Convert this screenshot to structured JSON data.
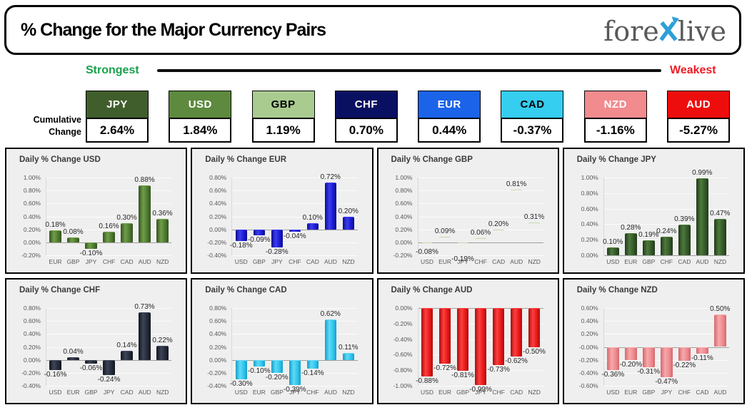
{
  "header": {
    "title": "% Change for the Major Currency Pairs",
    "logo": {
      "part1": "fore",
      "part2": "live",
      "x_color": "#2d9fd8",
      "text_color": "#58595b"
    }
  },
  "scale": {
    "strongest_label": "Strongest",
    "weakest_label": "Weakest",
    "strongest_color": "#17a24c",
    "weakest_color": "#ee1c25"
  },
  "cumulative": {
    "row_label_line1": "Cumulative",
    "row_label_line2": "Change",
    "items": [
      {
        "currency": "JPY",
        "value": "2.64%",
        "bg": "#405e2c",
        "fg": "#ffffff"
      },
      {
        "currency": "USD",
        "value": "1.84%",
        "bg": "#5d8a3e",
        "fg": "#ffffff"
      },
      {
        "currency": "GBP",
        "value": "1.19%",
        "bg": "#a9cb90",
        "fg": "#000000"
      },
      {
        "currency": "CHF",
        "value": "0.70%",
        "bg": "#0a1061",
        "fg": "#ffffff"
      },
      {
        "currency": "EUR",
        "value": "0.44%",
        "bg": "#1b63e8",
        "fg": "#ffffff"
      },
      {
        "currency": "CAD",
        "value": "-0.37%",
        "bg": "#35cdf0",
        "fg": "#000000"
      },
      {
        "currency": "NZD",
        "value": "-1.16%",
        "bg": "#f18b8e",
        "fg": "#ffffff"
      },
      {
        "currency": "AUD",
        "value": "-5.27%",
        "bg": "#ee0d0d",
        "fg": "#ffffff"
      }
    ]
  },
  "chart_data": [
    {
      "type": "bar",
      "title": "Daily % Change USD",
      "categories": [
        "EUR",
        "GBP",
        "JPY",
        "CHF",
        "CAD",
        "AUD",
        "NZD"
      ],
      "values": [
        0.18,
        0.08,
        -0.1,
        0.16,
        0.3,
        0.88,
        0.36
      ],
      "ylim": [
        -0.2,
        1.0
      ],
      "ytick_step": 0.2,
      "grid": true,
      "ylabel": "",
      "bar_color": "#4e7a31",
      "bar_light": "#6f9e49",
      "bar_dark": "#35541f"
    },
    {
      "type": "bar",
      "title": "Daily % Change EUR",
      "categories": [
        "USD",
        "GBP",
        "JPY",
        "CHF",
        "CAD",
        "AUD",
        "NZD"
      ],
      "values": [
        -0.18,
        -0.09,
        -0.28,
        -0.04,
        0.1,
        0.72,
        0.2
      ],
      "ylim": [
        -0.4,
        0.8
      ],
      "ytick_step": 0.2,
      "grid": true,
      "ylabel": "",
      "bar_color": "#1a1ad2",
      "bar_light": "#3c3cf0",
      "bar_dark": "#0c0c8e"
    },
    {
      "type": "bar",
      "title": "Daily % Change GBP",
      "categories": [
        "USD",
        "EUR",
        "JPY",
        "CHF",
        "CAD",
        "AUD",
        "NZD"
      ],
      "values": [
        -0.08,
        0.09,
        -0.19,
        0.06,
        0.2,
        0.81,
        0.31
      ],
      "ylim": [
        -0.2,
        1.0
      ],
      "ytick_step": 0.2,
      "grid": true,
      "ylabel": "",
      "bar_color": "#a3c888",
      "bar_light": "#c0daa8",
      "bar_dark": "#7b a45f"
    },
    {
      "type": "bar",
      "title": "Daily % Change JPY",
      "categories": [
        "USD",
        "EUR",
        "GBP",
        "CHF",
        "CAD",
        "AUD",
        "NZD"
      ],
      "values": [
        0.1,
        0.28,
        0.19,
        0.24,
        0.39,
        0.99,
        0.47
      ],
      "ylim": [
        0.0,
        1.0
      ],
      "ytick_step": 0.2,
      "grid": true,
      "ylabel": "",
      "bar_color": "#35592a",
      "bar_light": "#4d7a3b",
      "bar_dark": "#223a1a"
    },
    {
      "type": "bar",
      "title": "Daily % Change CHF",
      "categories": [
        "USD",
        "EUR",
        "GBP",
        "JPY",
        "CAD",
        "AUD",
        "NZD"
      ],
      "values": [
        -0.16,
        0.04,
        -0.06,
        -0.24,
        0.14,
        0.73,
        0.22
      ],
      "ylim": [
        -0.4,
        0.8
      ],
      "ytick_step": 0.2,
      "grid": true,
      "ylabel": "",
      "bar_color": "#252b38",
      "bar_light": "#3c4457",
      "bar_dark": "#13161e"
    },
    {
      "type": "bar",
      "title": "Daily % Change CAD",
      "categories": [
        "USD",
        "EUR",
        "GBP",
        "JPY",
        "CHF",
        "AUD",
        "NZD"
      ],
      "values": [
        -0.3,
        -0.1,
        -0.2,
        -0.39,
        -0.14,
        0.62,
        0.11
      ],
      "ylim": [
        -0.4,
        0.8
      ],
      "ytick_step": 0.2,
      "grid": true,
      "ylabel": "",
      "bar_color": "#2ec6ef",
      "bar_light": "#5fd9f8",
      "bar_dark": "#189ec4"
    },
    {
      "type": "bar",
      "title": "Daily % Change AUD",
      "categories": [
        "USD",
        "EUR",
        "GBP",
        "JPY",
        "CHF",
        "CAD",
        "NZD"
      ],
      "values": [
        -0.88,
        -0.72,
        -0.81,
        -0.99,
        -0.73,
        -0.62,
        -0.5
      ],
      "ylim": [
        -1.0,
        0.0
      ],
      "ytick_step": 0.2,
      "grid": true,
      "ylabel": "",
      "bar_color": "#ea1717",
      "bar_light": "#fb4040",
      "bar_dark": "#ad0c0c"
    },
    {
      "type": "bar",
      "title": "Daily % Change NZD",
      "categories": [
        "USD",
        "EUR",
        "GBP",
        "JPY",
        "CHF",
        "CAD",
        "AUD"
      ],
      "values": [
        -0.36,
        -0.2,
        -0.31,
        -0.47,
        -0.22,
        -0.11,
        0.5
      ],
      "ylim": [
        -0.6,
        0.6
      ],
      "ytick_step": 0.2,
      "grid": true,
      "ylabel": "",
      "bar_color": "#ee8b8f",
      "bar_light": "#f6a9ac",
      "bar_dark": "#d5676c"
    }
  ]
}
